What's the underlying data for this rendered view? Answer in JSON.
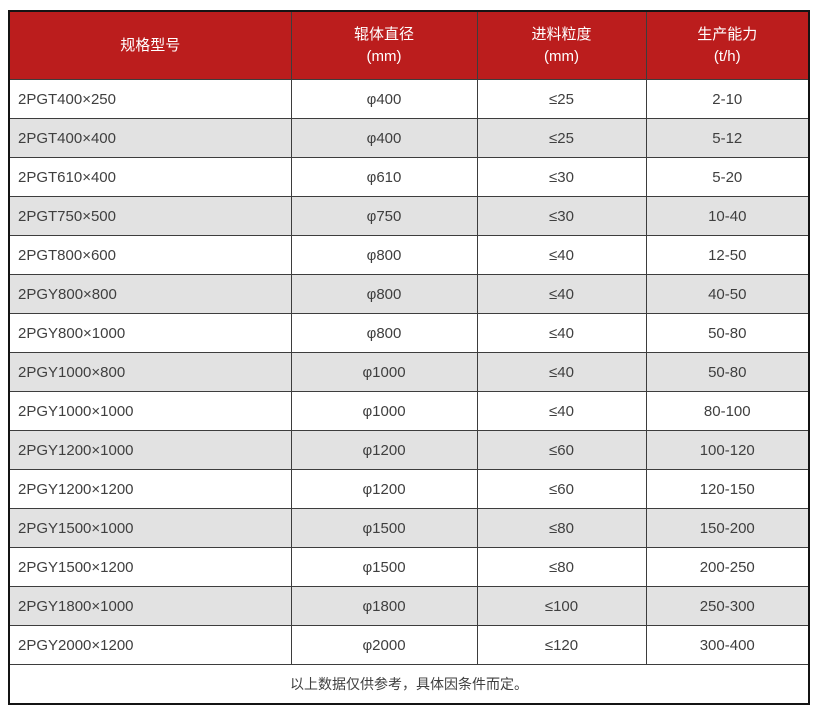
{
  "table": {
    "columns": [
      {
        "title": "规格型号",
        "unit": ""
      },
      {
        "title": "辊体直径",
        "unit": "(mm)"
      },
      {
        "title": "进料粒度",
        "unit": "(mm)"
      },
      {
        "title": "生产能力",
        "unit": "(t/h)"
      }
    ],
    "rows": [
      [
        "2PGT400×250",
        "φ400",
        "≤25",
        "2-10"
      ],
      [
        "2PGT400×400",
        "φ400",
        "≤25",
        "5-12"
      ],
      [
        "2PGT610×400",
        "φ610",
        "≤30",
        "5-20"
      ],
      [
        "2PGT750×500",
        "φ750",
        "≤30",
        "10-40"
      ],
      [
        "2PGT800×600",
        "φ800",
        "≤40",
        "12-50"
      ],
      [
        "2PGY800×800",
        "φ800",
        "≤40",
        "40-50"
      ],
      [
        "2PGY800×1000",
        "φ800",
        "≤40",
        "50-80"
      ],
      [
        "2PGY1000×800",
        "φ1000",
        "≤40",
        "50-80"
      ],
      [
        "2PGY1000×1000",
        "φ1000",
        "≤40",
        "80-100"
      ],
      [
        "2PGY1200×1000",
        "φ1200",
        "≤60",
        "100-120"
      ],
      [
        "2PGY1200×1200",
        "φ1200",
        "≤60",
        "120-150"
      ],
      [
        "2PGY1500×1000",
        "φ1500",
        "≤80",
        "150-200"
      ],
      [
        "2PGY1500×1200",
        "φ1500",
        "≤80",
        "200-250"
      ],
      [
        "2PGY1800×1000",
        "φ1800",
        "≤100",
        "250-300"
      ],
      [
        "2PGY2000×1200",
        "φ2000",
        "≤120",
        "300-400"
      ]
    ],
    "footer_note": "以上数据仅供参考，具体因条件而定。",
    "colors": {
      "header_bg": "#bb1d1d",
      "header_text": "#ffffff",
      "row_bg": "#ffffff",
      "row_alt_bg": "#e2e2e2",
      "cell_text": "#3f3f3f",
      "border_inner": "#3d3d3d",
      "border_outer": "#141414"
    }
  }
}
